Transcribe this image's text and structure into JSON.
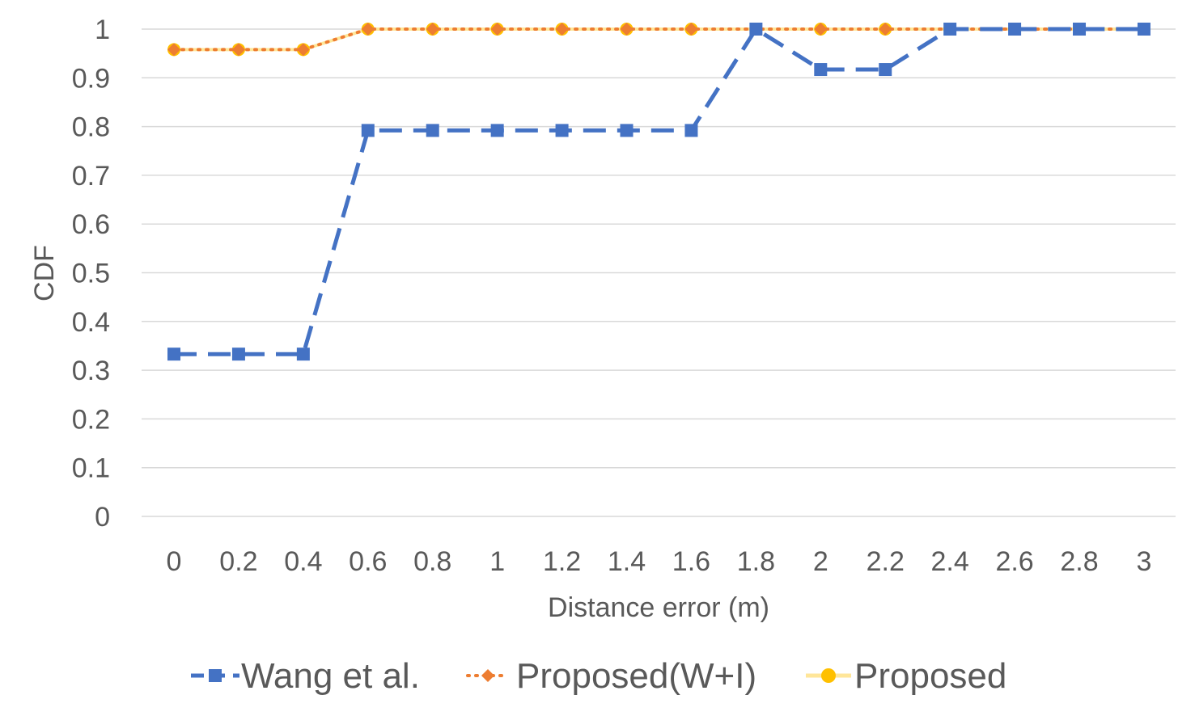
{
  "chart_data": {
    "type": "line",
    "xlabel": "Distance error (m)",
    "ylabel": "CDF",
    "categories": [
      "0",
      "0.2",
      "0.4",
      "0.6",
      "0.8",
      "1",
      "1.2",
      "1.4",
      "1.6",
      "1.8",
      "2",
      "2.2",
      "2.4",
      "2.6",
      "2.8",
      "3"
    ],
    "ylim": [
      0,
      1
    ],
    "y_ticks": [
      "0",
      "0.1",
      "0.2",
      "0.3",
      "0.4",
      "0.5",
      "0.6",
      "0.7",
      "0.8",
      "0.9",
      "1"
    ],
    "grid": true,
    "legend_position": "bottom",
    "series": [
      {
        "name": "Wang et al.",
        "color": "#4472C4",
        "line_style": "dashed",
        "marker": "square",
        "values": [
          0.333,
          0.333,
          0.333,
          0.792,
          0.792,
          0.792,
          0.792,
          0.792,
          0.792,
          1,
          0.917,
          0.917,
          1,
          1,
          1,
          1
        ]
      },
      {
        "name": "Proposed(W+I)",
        "color": "#ED7D31",
        "line_style": "dotted",
        "marker": "diamond",
        "values": [
          0.958,
          0.958,
          0.958,
          1,
          1,
          1,
          1,
          1,
          1,
          1,
          1,
          1,
          1,
          1,
          1,
          1
        ]
      },
      {
        "name": "Proposed",
        "color": "#FFC000",
        "line_style": "solid-light",
        "marker": "circle",
        "values": [
          0.958,
          0.958,
          0.958,
          1,
          1,
          1,
          1,
          1,
          1,
          1,
          1,
          1,
          1,
          1,
          1,
          1
        ]
      }
    ]
  }
}
